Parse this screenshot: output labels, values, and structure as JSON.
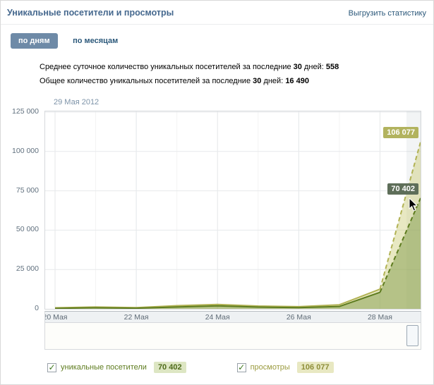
{
  "header": {
    "title": "Уникальные посетители и просмотры",
    "export_link": "Выгрузить статистику"
  },
  "tabs": {
    "by_days": "по дням",
    "by_months": "по месяцам"
  },
  "summary": {
    "line1_prefix": "Среднее суточное количество уникальных посетителей за последние",
    "line1_days": "30",
    "line1_mid": "дней:",
    "line1_value": "558",
    "line2_prefix": "Общее количество уникальных посетителей за последние",
    "line2_days": "30",
    "line2_mid": "дней:",
    "line2_value": "16 490"
  },
  "chart": {
    "date_label": "29 Мая 2012",
    "tooltip_views": "106 077",
    "tooltip_unique": "70 402"
  },
  "legend": {
    "check_glyph": "✓",
    "unique_label": "уникальные посетители",
    "unique_value": "70 402",
    "views_label": "просмотры",
    "views_value": "106 077"
  },
  "colors": {
    "accent_title": "#45688e",
    "link": "#2b587a",
    "tab_active_bg": "#6e8aa7",
    "unique": "#5e7c1f",
    "views": "#b1b254",
    "tooltip_unique_bg": "#5e6e59",
    "tooltip_views_bg": "#b2b35e"
  },
  "chart_data": {
    "type": "line",
    "x": [
      "20 Мая",
      "21 Мая",
      "22 Мая",
      "23 Мая",
      "24 Мая",
      "25 Мая",
      "26 Мая",
      "27 Мая",
      "28 Мая",
      "29 Мая"
    ],
    "x_tick_labels": [
      "20 Мая",
      "22 Мая",
      "24 Мая",
      "26 Мая",
      "28 Мая"
    ],
    "series": [
      {
        "name": "уникальные посетители",
        "color": "#5e7c1f",
        "fill": "rgba(130,155,75,0.50)",
        "values": [
          300,
          700,
          400,
          1200,
          1900,
          1100,
          800,
          1500,
          10500,
          70402
        ]
      },
      {
        "name": "просмотры",
        "color": "#b1b254",
        "fill": "rgba(205,205,120,0.45)",
        "values": [
          700,
          1200,
          800,
          2000,
          2800,
          1800,
          1400,
          2600,
          12500,
          106077
        ]
      }
    ],
    "ylim": [
      0,
      125000
    ],
    "yticks": [
      0,
      25000,
      50000,
      75000,
      100000,
      125000
    ],
    "ytick_labels": [
      "0",
      "25 000",
      "50 000",
      "75 000",
      "100 000",
      "125 000"
    ],
    "dashed_from_index": 8,
    "grid": true,
    "legend_position": "bottom",
    "annotations": [
      {
        "text": "106 077",
        "series": "просмотры",
        "x": "29 Мая",
        "y": 106077
      },
      {
        "text": "70 402",
        "series": "уникальные посетители",
        "x": "29 Мая",
        "y": 70402
      }
    ]
  }
}
